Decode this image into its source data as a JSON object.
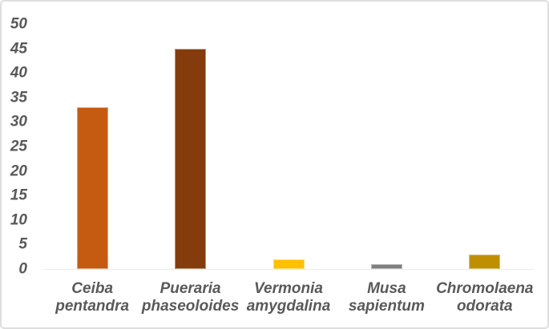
{
  "figure": {
    "background": "#FFFFFF",
    "frame_border_color": "#DEDEDE"
  },
  "chart_data": {
    "type": "bar",
    "title": "",
    "xlabel": "",
    "ylabel": "",
    "categories": [
      "Ceiba pentandra",
      "Pueraria phaseoloides",
      "Vermonia amygdalina",
      "Musa sapientum",
      "Chromolaena odorata"
    ],
    "category_lines": [
      [
        "Ceiba",
        "pentandra"
      ],
      [
        "Pueraria",
        "phaseoloides"
      ],
      [
        "Vermonia",
        "amygdalina"
      ],
      [
        "Musa",
        "sapientum"
      ],
      [
        "Chromolaena",
        "odorata"
      ]
    ],
    "values": [
      33,
      45,
      2,
      1,
      3
    ],
    "bar_colors": [
      "#C55A11",
      "#843C0C",
      "#FFC000",
      "#7F7F7F",
      "#BF8F00"
    ],
    "ylim": [
      0,
      50
    ],
    "yticks": [
      0,
      5,
      10,
      15,
      20,
      25,
      30,
      35,
      40,
      45,
      50
    ],
    "grid": false,
    "legend_position": "none",
    "text_color": "#595959",
    "axis_line_color": "#ECECEC"
  }
}
